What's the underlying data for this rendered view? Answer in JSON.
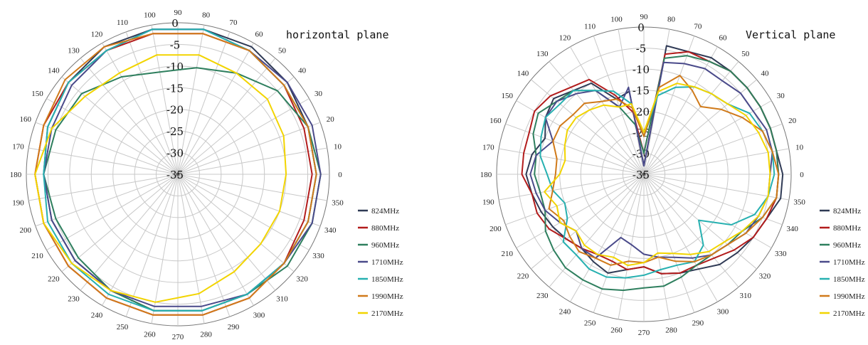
{
  "chart_data": [
    {
      "type": "polar-line",
      "title": "horizontal plane",
      "r_ticks": [
        -35,
        -30,
        -25,
        -20,
        -15,
        -10,
        -5,
        0
      ],
      "rlim": [
        -35,
        0
      ],
      "angle_ticks": [
        0,
        10,
        20,
        30,
        40,
        50,
        60,
        70,
        80,
        90,
        100,
        110,
        120,
        130,
        140,
        150,
        160,
        170,
        180,
        190,
        200,
        210,
        220,
        230,
        240,
        250,
        260,
        270,
        280,
        290,
        300,
        310,
        320,
        330,
        340,
        350
      ],
      "grid": true,
      "legend_position": "bottom-right",
      "angles": [
        0,
        20,
        40,
        60,
        80,
        100,
        120,
        140,
        160,
        180,
        200,
        220,
        240,
        260,
        280,
        300,
        320,
        340
      ],
      "series": [
        {
          "name": "824MHz",
          "color": "#2f3a55",
          "values": [
            -3,
            -3,
            -2,
            -1,
            -1,
            -1,
            -1,
            -2,
            -3,
            -4,
            -4,
            -4,
            -4,
            -3,
            -3,
            -3,
            -3,
            -3
          ]
        },
        {
          "name": "880MHz",
          "color": "#b21c1c",
          "values": [
            -4,
            -4,
            -3,
            -2,
            -2,
            -2,
            -2,
            -2,
            -2,
            -2,
            -2,
            -2,
            -2,
            -2,
            -2,
            -2,
            -3,
            -4
          ]
        },
        {
          "name": "960MHz",
          "color": "#2e7f5e",
          "values": [
            -2,
            -3,
            -5,
            -8,
            -10,
            -11,
            -9,
            -6,
            -5,
            -4,
            -5,
            -5,
            -4,
            -3,
            -3,
            -3,
            -2,
            -2
          ]
        },
        {
          "name": "1710MHz",
          "color": "#4a4a8a",
          "values": [
            -2,
            -2,
            -2,
            -2,
            -1,
            -1,
            -2,
            -3,
            -4,
            -4,
            -4,
            -4,
            -4,
            -4,
            -4,
            -3,
            -3,
            -2
          ]
        },
        {
          "name": "1850MHz",
          "color": "#26b0b0",
          "values": [
            -3,
            -3,
            -3,
            -2,
            -1,
            -1,
            -2,
            -2,
            -3,
            -4,
            -3,
            -3,
            -3,
            -3,
            -3,
            -3,
            -3,
            -3
          ]
        },
        {
          "name": "1990MHz",
          "color": "#d07a1a",
          "values": [
            -3,
            -3,
            -3,
            -2,
            -2,
            -2,
            -1,
            -1,
            -2,
            -2,
            -2,
            -2,
            -2,
            -2,
            -2,
            -2,
            -3,
            -3
          ]
        },
        {
          "name": "2170MHz",
          "color": "#f2d400",
          "values": [
            -10,
            -9,
            -8,
            -8,
            -7,
            -7,
            -8,
            -7,
            -4,
            -2,
            -2,
            -3,
            -4,
            -5,
            -7,
            -9,
            -10,
            -10
          ]
        }
      ]
    },
    {
      "type": "polar-line",
      "title": "Vertical plane",
      "r_ticks": [
        -35,
        -30,
        -25,
        -20,
        -15,
        -10,
        -5,
        0
      ],
      "rlim": [
        -35,
        0
      ],
      "angle_ticks": [
        0,
        10,
        20,
        30,
        40,
        50,
        60,
        70,
        80,
        90,
        100,
        110,
        120,
        130,
        140,
        150,
        160,
        170,
        180,
        190,
        200,
        210,
        220,
        230,
        240,
        250,
        260,
        270,
        280,
        290,
        300,
        310,
        320,
        330,
        340,
        350
      ],
      "grid": true,
      "legend_position": "bottom-right",
      "angles": [
        0,
        10,
        20,
        30,
        40,
        50,
        60,
        70,
        80,
        90,
        100,
        110,
        120,
        130,
        140,
        150,
        160,
        170,
        180,
        190,
        200,
        210,
        220,
        230,
        240,
        250,
        260,
        270,
        280,
        290,
        300,
        310,
        320,
        330,
        340,
        350
      ],
      "series": [
        {
          "name": "824MHz",
          "color": "#2f3a55",
          "values": [
            -2,
            -3,
            -3,
            -3,
            -3,
            -3,
            -3,
            -4,
            -4,
            -33,
            -15,
            -16,
            -10,
            -9,
            -7,
            -8,
            -10,
            -8,
            -7,
            -8,
            -9,
            -10,
            -11,
            -12,
            -11,
            -10,
            -12,
            -13,
            -11,
            -10,
            -9,
            -7,
            -6,
            -5,
            -4,
            -2
          ]
        },
        {
          "name": "880MHz",
          "color": "#b21c1c",
          "values": [
            -3,
            -3,
            -3,
            -3,
            -3,
            -3,
            -4,
            -4,
            -6,
            -30,
            -20,
            -15,
            -9,
            -8,
            -6,
            -5,
            -6,
            -6,
            -6,
            -8,
            -8,
            -9,
            -11,
            -12,
            -13,
            -13,
            -12,
            -13,
            -11,
            -10,
            -10,
            -9,
            -7,
            -5,
            -4,
            -3
          ]
        },
        {
          "name": "960MHz",
          "color": "#2e7f5e",
          "values": [
            -3,
            -3,
            -3,
            -3,
            -3,
            -3,
            -4,
            -5,
            -7,
            -30,
            -23,
            -18,
            -12,
            -9,
            -8,
            -6,
            -7,
            -9,
            -9,
            -10,
            -10,
            -8,
            -7,
            -6,
            -6,
            -6,
            -7,
            -8,
            -8,
            -9,
            -10,
            -10,
            -9,
            -8,
            -5,
            -3
          ]
        },
        {
          "name": "1710MHz",
          "color": "#4a4a8a",
          "values": [
            -5,
            -4,
            -4,
            -5,
            -5,
            -6,
            -6,
            -7,
            -8,
            -33,
            -14,
            -18,
            -12,
            -10,
            -8,
            -8,
            -12,
            -9,
            -8,
            -9,
            -10,
            -12,
            -14,
            -12,
            -12,
            -19,
            -18,
            -16,
            -15,
            -14,
            -12,
            -10,
            -9,
            -7,
            -6,
            -5
          ]
        },
        {
          "name": "1850MHz",
          "color": "#26b0b0",
          "values": [
            -4,
            -4,
            -5,
            -6,
            -9,
            -10,
            -11,
            -13,
            -16,
            -26,
            -18,
            -14,
            -12,
            -9,
            -9,
            -8,
            -9,
            -10,
            -12,
            -13,
            -15,
            -14,
            -10,
            -10,
            -9,
            -9,
            -10,
            -11,
            -12,
            -12,
            -11,
            -13,
            -18,
            -11,
            -7,
            -5
          ]
        },
        {
          "name": "1990MHz",
          "color": "#d07a1a",
          "values": [
            -3,
            -4,
            -5,
            -8,
            -11,
            -14,
            -12,
            -10,
            -14,
            -26,
            -19,
            -16,
            -15,
            -13,
            -13,
            -12,
            -12,
            -14,
            -14,
            -13,
            -11,
            -13,
            -12,
            -11,
            -12,
            -12,
            -14,
            -14,
            -15,
            -13,
            -11,
            -10,
            -9,
            -7,
            -5,
            -3
          ]
        },
        {
          "name": "2170MHz",
          "color": "#f2d400",
          "values": [
            -5,
            -5,
            -6,
            -7,
            -9,
            -10,
            -11,
            -12,
            -15,
            -25,
            -18,
            -18,
            -16,
            -15,
            -14,
            -14,
            -15,
            -16,
            -15,
            -11,
            -13,
            -12,
            -14,
            -13,
            -13,
            -14,
            -13,
            -14,
            -16,
            -15,
            -13,
            -11,
            -10,
            -8,
            -6,
            -5
          ]
        }
      ]
    }
  ]
}
